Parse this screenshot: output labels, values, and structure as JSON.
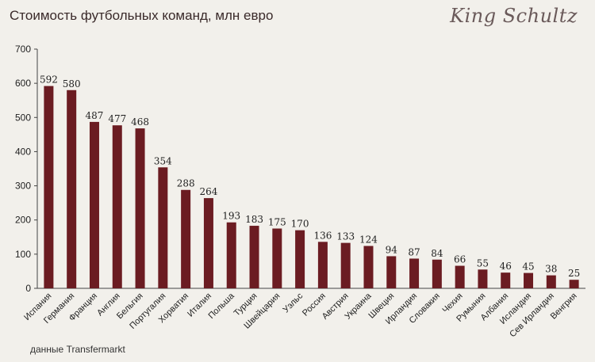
{
  "header": {
    "title": "Стоимость футбольных команд, млн евро",
    "logo_text": "King Schultz"
  },
  "footer": {
    "source": "данные Transfermarkt"
  },
  "colors": {
    "bar": "#6b1c22",
    "background": "#f2f0eb",
    "axis": "#444444"
  },
  "chart_data": {
    "type": "bar",
    "title": "Стоимость футбольных команд, млн евро",
    "xlabel": "",
    "ylabel": "",
    "ylim": [
      0,
      700
    ],
    "yticks": [
      0,
      100,
      200,
      300,
      400,
      500,
      600,
      700
    ],
    "grid": false,
    "categories": [
      "Испания",
      "Германия",
      "Франция",
      "Англия",
      "Бельгия",
      "Португалия",
      "Хорватия",
      "Италия",
      "Польша",
      "Турция",
      "Швейцария",
      "Уэльс",
      "Россия",
      "Австрия",
      "Украина",
      "Швеция",
      "Ирландия",
      "Словакия",
      "Чехия",
      "Румыния",
      "Албания",
      "Исландия",
      "Сев Ирландия",
      "Венгрия"
    ],
    "values": [
      592,
      580,
      487,
      477,
      468,
      354,
      288,
      264,
      193,
      183,
      175,
      170,
      136,
      133,
      124,
      94,
      87,
      84,
      66,
      55,
      46,
      45,
      38,
      25
    ]
  }
}
